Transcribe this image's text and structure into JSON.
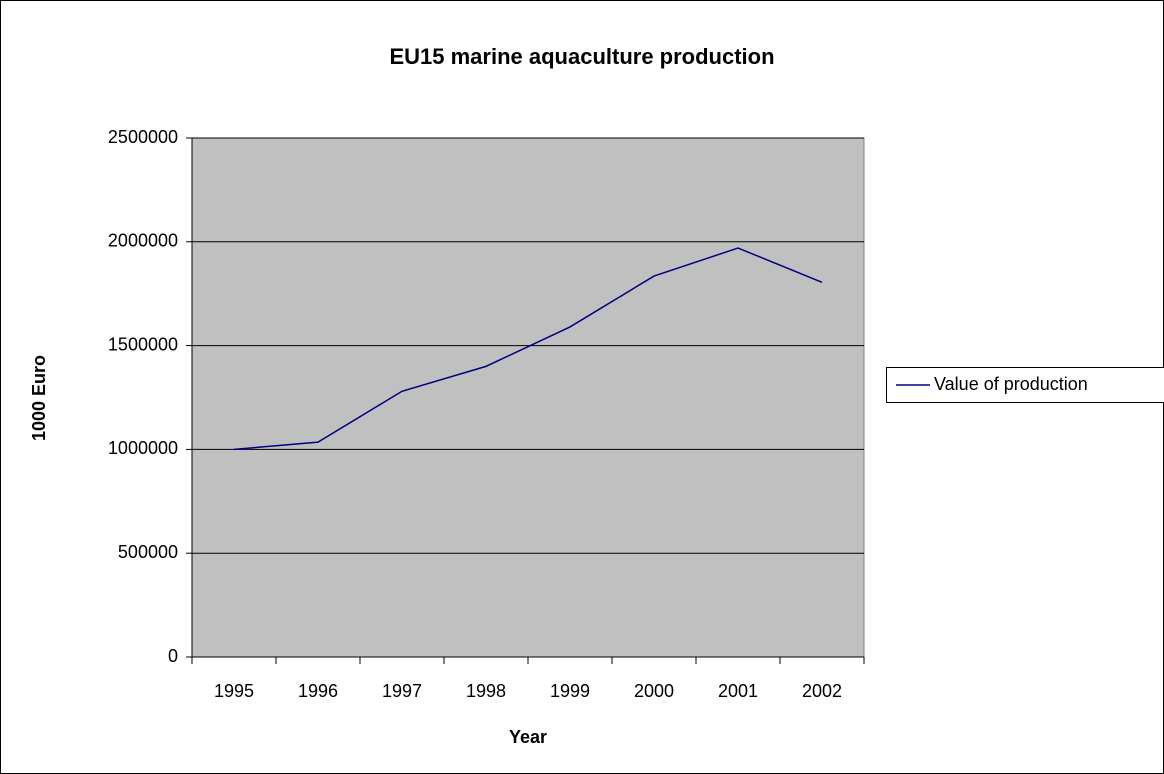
{
  "chart_data": {
    "type": "line",
    "title": "EU15 marine aquaculture production",
    "x_label": "Year",
    "y_label": "1000 Euro",
    "categories": [
      "1995",
      "1996",
      "1997",
      "1998",
      "1999",
      "2000",
      "2001",
      "2002"
    ],
    "series": [
      {
        "name": "Value of production",
        "color": "#000080",
        "values": [
          1000000,
          1035000,
          1280000,
          1400000,
          1590000,
          1835000,
          1970000,
          1805000
        ]
      }
    ],
    "ylim": [
      0,
      2500000
    ],
    "yticks": [
      0,
      500000,
      1000000,
      1500000,
      2000000,
      2500000
    ],
    "grid": true,
    "legend": "right"
  }
}
